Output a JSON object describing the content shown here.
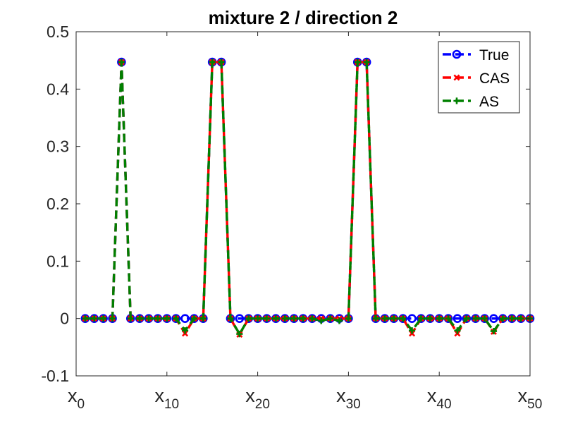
{
  "chart_data": {
    "type": "line",
    "title": "mixture 2 / direction 2",
    "xlabel": "",
    "ylabel": "",
    "xlim": [
      0,
      50
    ],
    "ylim": [
      -0.1,
      0.5
    ],
    "grid": false,
    "legend_position": "top-right",
    "y_ticks": [
      -0.1,
      0,
      0.1,
      0.2,
      0.3,
      0.4,
      0.5
    ],
    "y_tick_labels": [
      "-0.1",
      "0",
      "0.1",
      "0.2",
      "0.3",
      "0.4",
      "0.5"
    ],
    "x_ticks": [
      {
        "value": 0,
        "base": "x",
        "sub": "0"
      },
      {
        "value": 10,
        "base": "x",
        "sub": "10"
      },
      {
        "value": 20,
        "base": "x",
        "sub": "20"
      },
      {
        "value": 30,
        "base": "x",
        "sub": "30"
      },
      {
        "value": 40,
        "base": "x",
        "sub": "40"
      },
      {
        "value": 50,
        "base": "x",
        "sub": "50"
      }
    ],
    "x": [
      1,
      2,
      3,
      4,
      5,
      6,
      7,
      8,
      9,
      10,
      11,
      12,
      13,
      14,
      15,
      16,
      17,
      18,
      19,
      20,
      21,
      22,
      23,
      24,
      25,
      26,
      27,
      28,
      29,
      30,
      31,
      32,
      33,
      34,
      35,
      36,
      37,
      38,
      39,
      40,
      41,
      42,
      43,
      44,
      45,
      46,
      47,
      48,
      49,
      50
    ],
    "series": [
      {
        "name": "True",
        "color": "#0000ff",
        "marker": "circle",
        "values": [
          0,
          0,
          0,
          0,
          0.447,
          0,
          0,
          0,
          0,
          0,
          0,
          0,
          0,
          0,
          0.447,
          0.447,
          0,
          0,
          0,
          0,
          0,
          0,
          0,
          0,
          0,
          0,
          0,
          0,
          0,
          0,
          0.447,
          0.447,
          0,
          0,
          0,
          0,
          0,
          0,
          0,
          0,
          0,
          0,
          0,
          0,
          0,
          0,
          0,
          0,
          0,
          0
        ]
      },
      {
        "name": "CAS",
        "color": "#ff0000",
        "marker": "x",
        "values": [
          0,
          0,
          0,
          0,
          0.447,
          0,
          0,
          0,
          0,
          0,
          0,
          -0.026,
          0,
          0,
          0.447,
          0.447,
          0,
          -0.028,
          0,
          0,
          0,
          0,
          0,
          0,
          0,
          0,
          0,
          0,
          0,
          0,
          0.447,
          0.447,
          0,
          0,
          0,
          0,
          -0.026,
          0,
          0,
          0,
          0,
          -0.026,
          0,
          0,
          0,
          -0.023,
          0,
          0,
          0,
          0
        ]
      },
      {
        "name": "AS",
        "color": "#008000",
        "marker": "plus",
        "values": [
          0,
          0,
          0,
          0,
          0.447,
          0,
          0,
          0,
          0,
          0,
          0,
          -0.021,
          0,
          0,
          0.447,
          0.447,
          0,
          -0.027,
          0,
          0,
          0,
          0,
          0,
          0,
          0,
          0,
          -0.004,
          0,
          -0.004,
          0,
          0.447,
          0.447,
          0,
          0,
          0,
          0,
          -0.021,
          0,
          0,
          0,
          0,
          -0.021,
          0,
          0,
          0,
          -0.022,
          0,
          0,
          0,
          0
        ]
      }
    ]
  }
}
